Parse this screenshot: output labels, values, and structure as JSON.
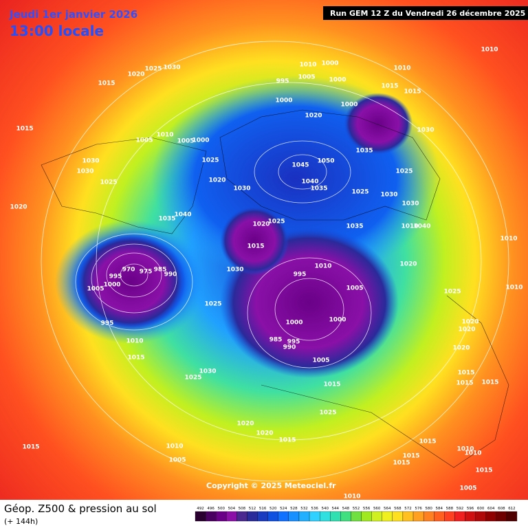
{
  "header": {
    "date": "Jeudi 1er janvier 2026",
    "time": "13:00 locale",
    "run": "Run GEM 12 Z du Vendredi 26 décembre 2025"
  },
  "footer": {
    "copyright": "Copyright © 2025 Meteociel.fr",
    "title": "Géop. Z500 & pression au sol",
    "lead": "(+ 144h)"
  },
  "isobar_labels": [
    1010,
    1010,
    1000,
    1005,
    1010,
    1000,
    995,
    1015,
    1015,
    1020,
    1025,
    1030,
    1015,
    1000,
    1020,
    1000,
    1030,
    1015,
    1010,
    1005,
    1005,
    1000,
    1035,
    1025,
    1045,
    1050,
    1030,
    1030,
    1025,
    1020,
    1040,
    1035,
    1030,
    1025,
    1030,
    1025,
    1030,
    1020,
    1040,
    1035,
    1025,
    1020,
    1035,
    1040,
    1010,
    1015,
    1010,
    1020,
    1010,
    1030,
    970,
    975,
    985,
    990,
    995,
    995,
    1000,
    1005,
    1010,
    1005,
    1025,
    1025,
    1000,
    1000,
    1020,
    1020,
    995,
    985,
    995,
    990,
    1010,
    1020,
    1015,
    1005,
    1015,
    1030,
    1025,
    1015,
    1015,
    1015,
    1025,
    1020,
    1020,
    1015,
    1015,
    1010,
    1010,
    1010,
    1015,
    1005,
    1015,
    1015,
    1015,
    1005,
    1010
  ],
  "colorbar": {
    "ticks": [
      492,
      496,
      500,
      504,
      508,
      512,
      516,
      520,
      524,
      528,
      532,
      536,
      540,
      544,
      548,
      552,
      556,
      560,
      564,
      568,
      572,
      576,
      580,
      584,
      588,
      592,
      596,
      600,
      604,
      608,
      612
    ],
    "colors": [
      "#2a0030",
      "#4a0060",
      "#6a0088",
      "#8a10a8",
      "#4a2890",
      "#2a2a9a",
      "#1a3ac0",
      "#1050e0",
      "#1070ff",
      "#1890ff",
      "#20b0ff",
      "#30d0ff",
      "#30e0e0",
      "#30e0b0",
      "#40e080",
      "#70e040",
      "#a0e820",
      "#d0f020",
      "#f0f020",
      "#ffe020",
      "#ffc020",
      "#ffa020",
      "#ff8020",
      "#ff6020",
      "#ff4020",
      "#f02020",
      "#d01010",
      "#b00808",
      "#900000",
      "#700000",
      "#500000"
    ]
  }
}
